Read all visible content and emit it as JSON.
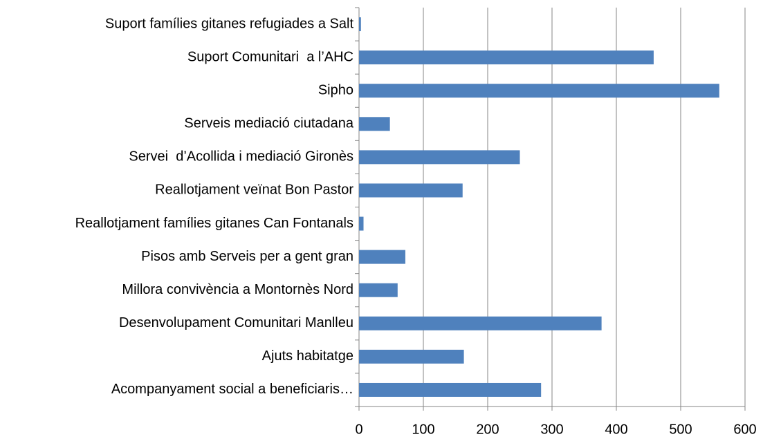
{
  "chart_data": {
    "type": "bar",
    "orientation": "horizontal",
    "categories": [
      "Suport famílies gitanes refugiades a Salt",
      "Suport Comunitari  a l’AHC",
      "Sipho",
      "Serveis mediació ciutadana",
      "Servei  d’Acollida i mediació Gironès",
      "Reallotjament veïnat Bon Pastor",
      "Reallotjament famílies gitanes Can Fontanals",
      "Pisos amb Serveis per a gent gran",
      "Millora convivència a Montornès Nord",
      "Desenvolupament Comunitari Manlleu",
      "Ajuts habitatge",
      "Acompanyament social a beneficiaris…"
    ],
    "values": [
      3,
      458,
      560,
      48,
      250,
      161,
      7,
      72,
      60,
      377,
      163,
      283
    ],
    "color": "#4f81bd",
    "xlim": [
      0,
      600
    ],
    "xticks": [
      0,
      100,
      200,
      300,
      400,
      500,
      600
    ],
    "grid": true
  }
}
